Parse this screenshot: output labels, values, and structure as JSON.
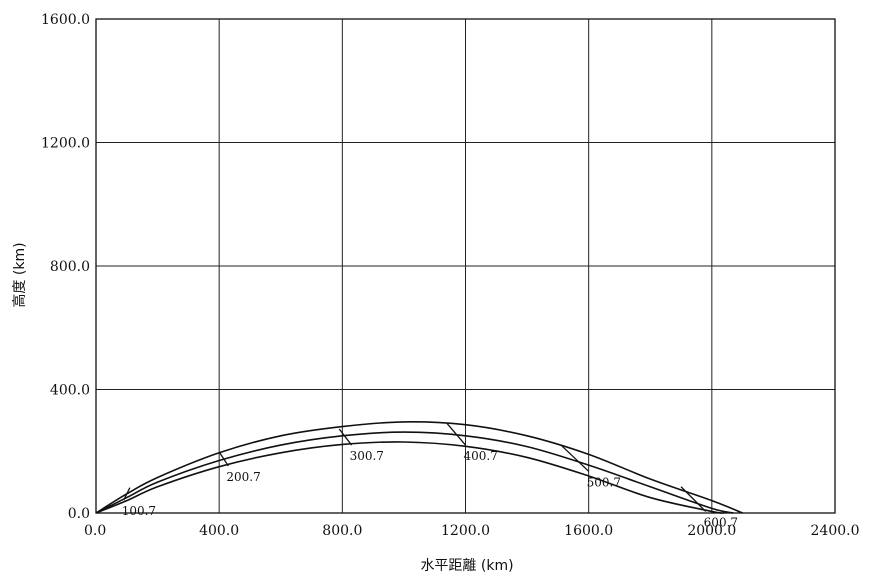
{
  "chart_data": {
    "type": "line",
    "title": "",
    "xlabel": "水平距離 (km)",
    "ylabel": "高度 (km)",
    "xlim": [
      0,
      2400
    ],
    "ylim": [
      0,
      1600
    ],
    "grid": true,
    "x_ticks": [
      0,
      400,
      800,
      1200,
      1600,
      2000,
      2400
    ],
    "y_ticks": [
      0,
      400,
      800,
      1200,
      1600
    ],
    "x_tick_labels": [
      "0.0",
      "400.0",
      "800.0",
      "1200.0",
      "1600.0",
      "2000.0",
      "2400.0"
    ],
    "y_tick_labels": [
      "0.0",
      "400.0",
      "800.0",
      "1200.0",
      "1600.0"
    ],
    "series": [
      {
        "x": [
          0,
          100,
          200,
          400,
          600,
          800,
          1000,
          1200,
          1400,
          1600,
          1800,
          2000,
          2100
        ],
        "y": [
          0,
          62,
          115,
          195,
          250,
          280,
          295,
          286,
          250,
          190,
          110,
          40,
          0
        ]
      },
      {
        "x": [
          0,
          100,
          200,
          400,
          600,
          800,
          1000,
          1200,
          1400,
          1600,
          1800,
          2000,
          2070
        ],
        "y": [
          0,
          50,
          100,
          170,
          220,
          250,
          262,
          250,
          215,
          155,
          85,
          15,
          0
        ]
      },
      {
        "x": [
          0,
          100,
          200,
          400,
          600,
          800,
          1000,
          1200,
          1400,
          1600,
          1800,
          2000,
          2040
        ],
        "y": [
          0,
          40,
          85,
          150,
          195,
          222,
          230,
          216,
          180,
          120,
          50,
          5,
          0
        ]
      }
    ],
    "time_marks": [
      {
        "label": "100.7",
        "top": [
          110,
          82
        ],
        "bottom": [
          90,
          42
        ]
      },
      {
        "label": "200.7",
        "top": [
          400,
          198
        ],
        "bottom": [
          430,
          152
        ]
      },
      {
        "label": "300.7",
        "top": [
          790,
          272
        ],
        "bottom": [
          830,
          220
        ]
      },
      {
        "label": "400.7",
        "top": [
          1140,
          290
        ],
        "bottom": [
          1200,
          220
        ]
      },
      {
        "label": "500.7",
        "top": [
          1510,
          220
        ],
        "bottom": [
          1600,
          135
        ]
      },
      {
        "label": "600.7",
        "top": [
          1900,
          85
        ],
        "bottom": [
          1980,
          5
        ]
      }
    ]
  }
}
